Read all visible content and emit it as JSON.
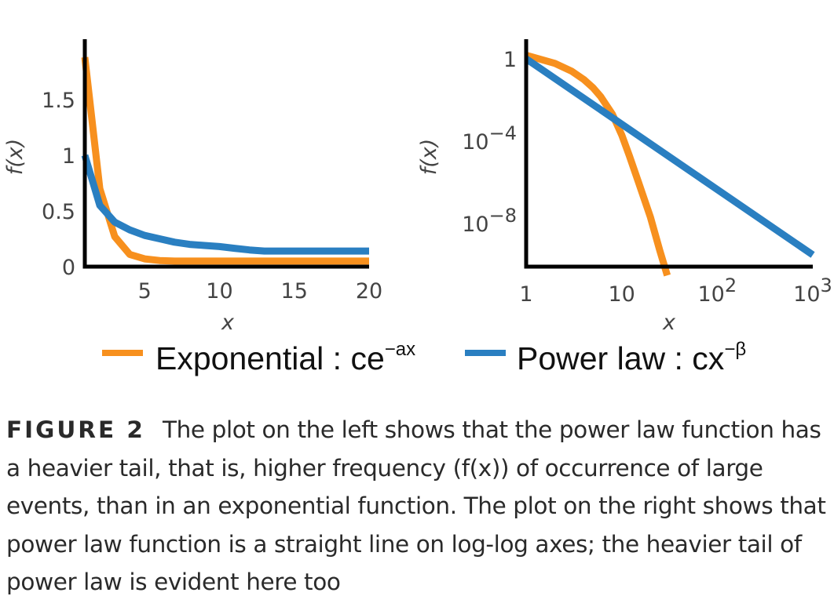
{
  "chart_data": [
    {
      "type": "line",
      "xlabel": "x",
      "ylabel": "f(x)",
      "xlim": [
        1,
        20
      ],
      "ylim": [
        0,
        1.9
      ],
      "x_ticks": [
        5,
        10,
        15,
        20
      ],
      "x_tick_labels": [
        "5",
        "10",
        "15",
        "20"
      ],
      "y_ticks": [
        0,
        0.5,
        1,
        1.5
      ],
      "y_tick_labels": [
        "0",
        "0.5",
        "1",
        "1.5"
      ],
      "grid": false,
      "series": [
        {
          "name": "Exponential",
          "color": "#f7901e",
          "x": [
            1,
            2,
            3,
            4,
            5,
            6,
            7,
            8,
            9,
            10,
            11,
            12,
            13,
            14,
            15,
            16,
            17,
            18,
            19,
            20
          ],
          "y": [
            1.88,
            0.7,
            0.27,
            0.11,
            0.07,
            0.055,
            0.05,
            0.05,
            0.05,
            0.05,
            0.05,
            0.05,
            0.05,
            0.05,
            0.05,
            0.05,
            0.05,
            0.05,
            0.05,
            0.05
          ]
        },
        {
          "name": "Power law",
          "color": "#2a7fc1",
          "x": [
            1,
            2,
            3,
            4,
            5,
            6,
            7,
            8,
            9,
            10,
            11,
            12,
            13,
            14,
            15,
            16,
            17,
            18,
            19,
            20
          ],
          "y": [
            1.0,
            0.55,
            0.4,
            0.33,
            0.28,
            0.25,
            0.22,
            0.2,
            0.19,
            0.18,
            0.165,
            0.15,
            0.14,
            0.14,
            0.14,
            0.14,
            0.14,
            0.14,
            0.14,
            0.14
          ]
        }
      ]
    },
    {
      "type": "line",
      "xlabel": "x",
      "ylabel": "f(x)",
      "x_scale": "log",
      "y_scale": "log",
      "xlim": [
        1,
        1000
      ],
      "ylim": [
        1e-11,
        10
      ],
      "x_ticks": [
        1,
        10,
        100,
        1000
      ],
      "x_tick_labels": [
        {
          "base": "1",
          "exp": ""
        },
        {
          "base": "10",
          "exp": ""
        },
        {
          "base": "10",
          "exp": "2"
        },
        {
          "base": "10",
          "exp": "3"
        }
      ],
      "y_ticks": [
        1,
        0.0001,
        1e-08
      ],
      "y_tick_labels": [
        {
          "base": "1",
          "exp": ""
        },
        {
          "base": "10",
          "exp": "−4"
        },
        {
          "base": "10",
          "exp": "−8"
        }
      ],
      "grid": false,
      "series": [
        {
          "name": "Exponential",
          "color": "#f7901e",
          "x": [
            1,
            2,
            3,
            4,
            5,
            6,
            8,
            10,
            12,
            15,
            20,
            25,
            30
          ],
          "y": [
            1.5,
            0.6,
            0.25,
            0.1,
            0.04,
            0.015,
            0.002,
            0.0002,
            2e-05,
            1e-06,
            2e-08,
            5e-10,
            3e-11
          ]
        },
        {
          "name": "Power law",
          "color": "#2a7fc1",
          "x": [
            1,
            1000
          ],
          "y": [
            1.0,
            3e-10
          ]
        }
      ]
    }
  ],
  "legend": {
    "items": [
      {
        "label": "Exponential : ce",
        "exp": "−ax",
        "color": "#f7901e"
      },
      {
        "label": "Power law : cx",
        "exp": "−β",
        "color": "#2a7fc1"
      }
    ]
  },
  "caption": {
    "label": "FIGURE 2",
    "text": "The plot on the left shows that the power law function has a heavier tail, that is, higher frequency (f(x)) of occurrence of large events, than in an exponential function. The plot on the right shows that power law function is a straight line on log-log axes; the heavier tail of power law is evident here too"
  }
}
